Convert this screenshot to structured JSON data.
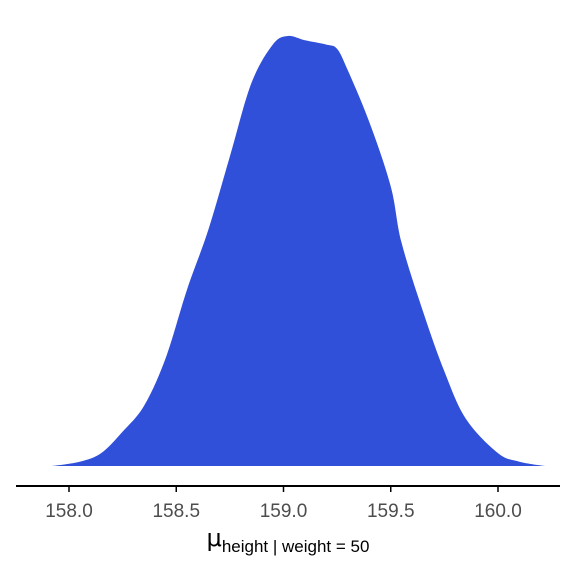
{
  "chart_data": {
    "type": "area",
    "title": "",
    "xlabel_symbol": "μ",
    "xlabel_subscript": "height | weight = 50",
    "ylabel": "",
    "xlim": [
      157.8,
      160.3
    ],
    "ylim": [
      0,
      1.0
    ],
    "x_ticks": [
      158.0,
      158.5,
      159.0,
      159.5,
      160.0
    ],
    "x_tick_labels": [
      "158.0",
      "158.5",
      "159.0",
      "159.5",
      "160.0"
    ],
    "grid": false,
    "fill_color": "#3050DA",
    "series": [
      {
        "x": [
          157.92,
          158.05,
          158.15,
          158.25,
          158.35,
          158.45,
          158.55,
          158.65,
          158.75,
          158.85,
          158.95,
          159.02,
          159.1,
          159.2,
          159.25,
          159.3,
          159.4,
          159.5,
          159.55,
          159.65,
          159.75,
          159.85,
          160.0,
          160.1,
          160.22
        ],
        "y": [
          0.0,
          0.01,
          0.03,
          0.08,
          0.14,
          0.25,
          0.41,
          0.55,
          0.72,
          0.89,
          0.98,
          1.0,
          0.99,
          0.98,
          0.97,
          0.92,
          0.8,
          0.65,
          0.52,
          0.36,
          0.22,
          0.11,
          0.03,
          0.01,
          0.0
        ]
      }
    ]
  }
}
